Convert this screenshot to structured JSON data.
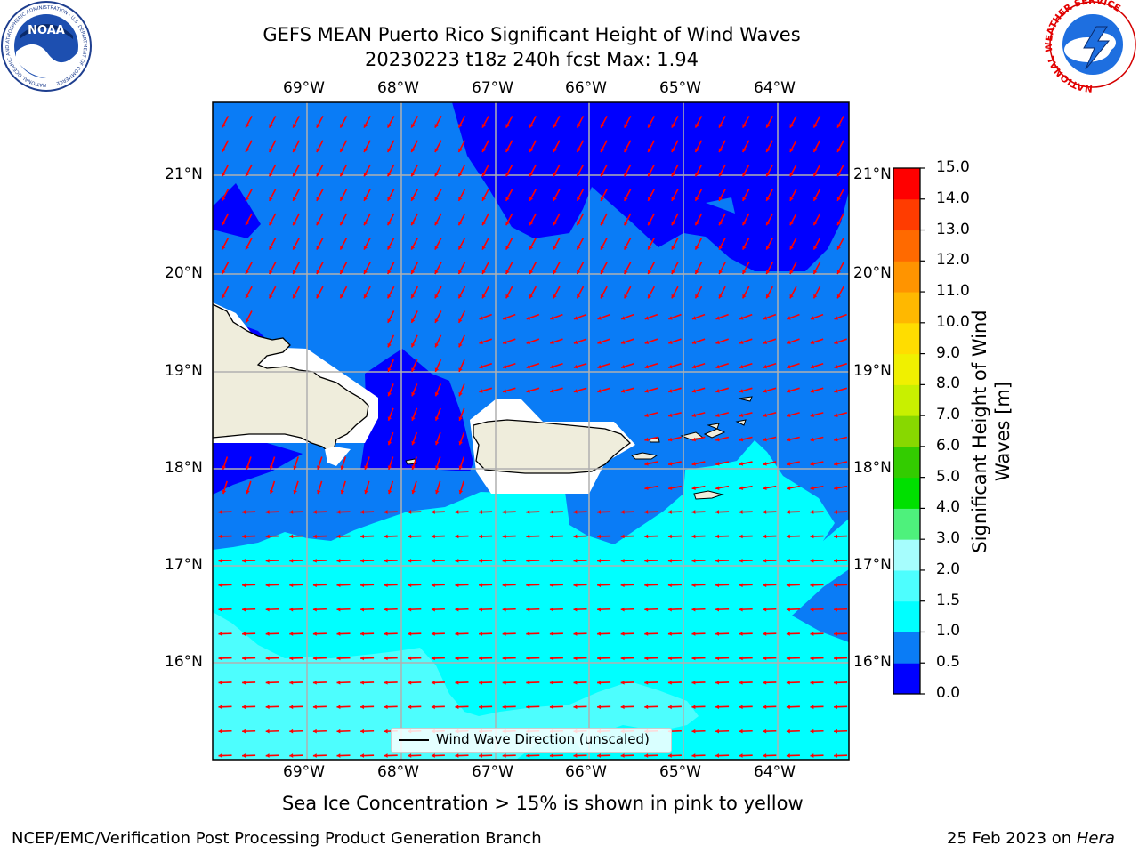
{
  "header": {
    "title_line1": "GEFS MEAN Puerto Rico Significant Height of Wind Waves",
    "title_line2": "20230223 t18z 240h fcst   Max: 1.94"
  },
  "logos": {
    "noaa_text": "NOAA",
    "noaa_ring_text": "NATIONAL OCEANIC AND ATMOSPHERIC ADMINISTRATION · U.S. DEPARTMENT OF COMMERCE",
    "nws_ring_text": "NATIONAL WEATHER SERVICE"
  },
  "map": {
    "lon_labels": [
      "69°W",
      "68°W",
      "67°W",
      "66°W",
      "65°W",
      "64°W"
    ],
    "lat_labels": [
      "21°N",
      "20°N",
      "19°N",
      "18°N",
      "17°N",
      "16°N"
    ],
    "legend_text": "Wind Wave Direction (unscaled)",
    "arrow_color": "#ff0000",
    "land_color": "#efeddc",
    "grid_color": "#b0b0b0"
  },
  "colorbar": {
    "title": "Significant Height of Wind Waves [m]",
    "levels": [
      "0.0",
      "0.5",
      "1.0",
      "1.5",
      "2.0",
      "3.0",
      "4.0",
      "5.0",
      "6.0",
      "7.0",
      "8.0",
      "9.0",
      "10.0",
      "11.0",
      "12.0",
      "13.0",
      "14.0",
      "15.0"
    ],
    "colors": [
      "#0000ff",
      "#0a7cf6",
      "#00ffff",
      "#4dfefe",
      "#a6fdfd",
      "#4ef17c",
      "#00e000",
      "#33cc00",
      "#88d800",
      "#c8f000",
      "#f0f000",
      "#ffdd00",
      "#ffb800",
      "#ff9400",
      "#ff6a00",
      "#ff3c00",
      "#ff0000"
    ]
  },
  "notes": {
    "sea_ice": "Sea Ice Concentration > 15% is shown in pink to yellow"
  },
  "footer": {
    "left": "NCEP/EMC/Verification Post Processing Product Generation Branch",
    "date": "25 Feb 2023 on ",
    "machine": "Hera"
  }
}
